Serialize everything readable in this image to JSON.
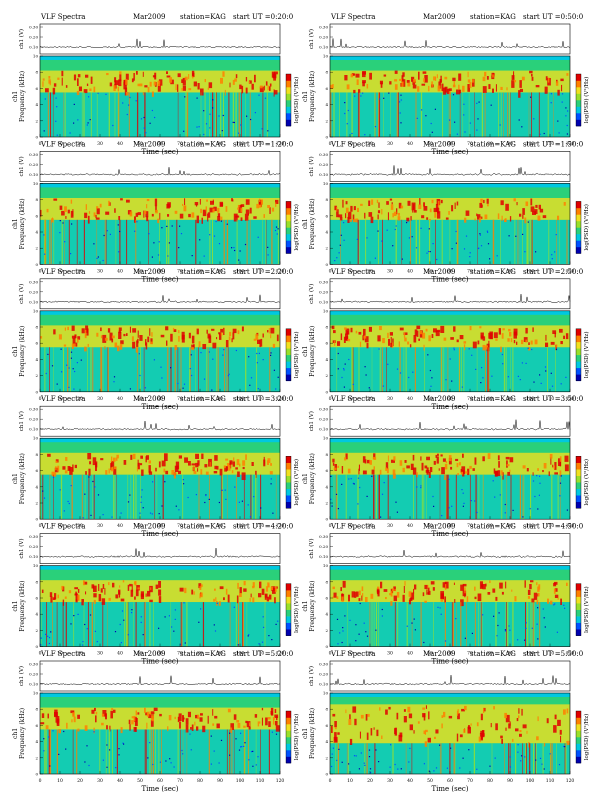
{
  "colors": {
    "spectrogram": [
      "#0000b0",
      "#0050ff",
      "#00c8e0",
      "#2ad07a",
      "#9ae02a",
      "#f0e020",
      "#ff8000",
      "#e00000"
    ],
    "line": "#000000",
    "background": "#ffffff"
  },
  "chart_data": [
    {
      "type": "heatmap",
      "header": {
        "left": "VLF Spectra",
        "date": "Mar2009",
        "station": "station=KAG",
        "start": "start UT =0:20:0"
      },
      "time_axis": {
        "label": "Time (sec)",
        "range": [
          0,
          120
        ],
        "ticks": [
          0,
          10,
          20,
          30,
          40,
          50,
          60,
          70,
          80,
          90,
          100,
          110,
          120
        ]
      },
      "freq_axis": {
        "label": "Frequency (kHz)",
        "channel_label": "ch1",
        "range": [
          0,
          10
        ],
        "ticks": [
          0,
          2,
          4,
          6,
          8,
          10
        ]
      },
      "amplitude_trace": {
        "label": "ch1 (V)",
        "ticks": [
          "0.30",
          "0.20",
          "0.10"
        ]
      },
      "colorbar": {
        "label": "log(PSD) (V²/Hz)"
      },
      "emission_band_khz": [
        5.5,
        8.2
      ]
    },
    {
      "type": "heatmap",
      "header": {
        "left": "VLF Spectra",
        "date": "Mar2009",
        "station": "station=KAG",
        "start": "start UT =0:50:0"
      },
      "time_axis": {
        "label": "Time (sec)",
        "range": [
          0,
          120
        ],
        "ticks": [
          0,
          10,
          20,
          30,
          40,
          50,
          60,
          70,
          80,
          90,
          100,
          110,
          120
        ]
      },
      "freq_axis": {
        "label": "Frequency (kHz)",
        "channel_label": "ch1",
        "range": [
          0,
          10
        ],
        "ticks": [
          0,
          2,
          4,
          6,
          8,
          10
        ]
      },
      "amplitude_trace": {
        "label": "ch1 (V)",
        "ticks": [
          "0.30",
          "0.20",
          "0.10"
        ]
      },
      "colorbar": {
        "label": "log(PSD) (V²/Hz)"
      },
      "emission_band_khz": [
        5.5,
        8.2
      ]
    },
    {
      "type": "heatmap",
      "header": {
        "left": "VLF Spectra",
        "date": "Mar2009",
        "station": "station=KAG",
        "start": "start UT =1:20:0"
      },
      "time_axis": {
        "label": "Time (sec)",
        "range": [
          0,
          120
        ],
        "ticks": [
          0,
          10,
          20,
          30,
          40,
          50,
          60,
          70,
          80,
          90,
          100,
          110,
          120
        ]
      },
      "freq_axis": {
        "label": "Frequency (kHz)",
        "channel_label": "ch1",
        "range": [
          0,
          10
        ],
        "ticks": [
          0,
          2,
          4,
          6,
          8,
          10
        ]
      },
      "amplitude_trace": {
        "label": "ch1 (V)",
        "ticks": [
          "0.30",
          "0.20",
          "0.10"
        ]
      },
      "colorbar": {
        "label": "log(PSD) (V²/Hz)"
      },
      "emission_band_khz": [
        5.5,
        8.2
      ]
    },
    {
      "type": "heatmap",
      "header": {
        "left": "VLF Spectra",
        "date": "Mar2009",
        "station": "station=KAG",
        "start": "start UT =1:50:0"
      },
      "time_axis": {
        "label": "Time (sec)",
        "range": [
          0,
          120
        ],
        "ticks": [
          0,
          10,
          20,
          30,
          40,
          50,
          60,
          70,
          80,
          90,
          100,
          110,
          120
        ]
      },
      "freq_axis": {
        "label": "Frequency (kHz)",
        "channel_label": "ch1",
        "range": [
          0,
          10
        ],
        "ticks": [
          0,
          2,
          4,
          6,
          8,
          10
        ]
      },
      "amplitude_trace": {
        "label": "ch1 (V)",
        "ticks": [
          "0.30",
          "0.20",
          "0.10"
        ]
      },
      "colorbar": {
        "label": "log(PSD) (V²/Hz)"
      },
      "emission_band_khz": [
        5.5,
        8.2
      ]
    },
    {
      "type": "heatmap",
      "header": {
        "left": "VLF Spectra",
        "date": "Mar2009",
        "station": "station=KAG",
        "start": "start UT =2:20:0"
      },
      "time_axis": {
        "label": "Time (sec)",
        "range": [
          0,
          120
        ],
        "ticks": [
          0,
          10,
          20,
          30,
          40,
          50,
          60,
          70,
          80,
          90,
          100,
          110,
          120
        ]
      },
      "freq_axis": {
        "label": "Frequency (kHz)",
        "channel_label": "ch1",
        "range": [
          0,
          10
        ],
        "ticks": [
          0,
          2,
          4,
          6,
          8,
          10
        ]
      },
      "amplitude_trace": {
        "label": "ch1 (V)",
        "ticks": [
          "0.30",
          "0.20",
          "0.10"
        ]
      },
      "colorbar": {
        "label": "log(PSD) (V²/Hz)"
      },
      "emission_band_khz": [
        5.5,
        8.2
      ]
    },
    {
      "type": "heatmap",
      "header": {
        "left": "VLF Spectra",
        "date": "Mar2009",
        "station": "station=KAG",
        "start": "start UT =2:50:0"
      },
      "time_axis": {
        "label": "Time (sec)",
        "range": [
          0,
          120
        ],
        "ticks": [
          0,
          10,
          20,
          30,
          40,
          50,
          60,
          70,
          80,
          90,
          100,
          110,
          120
        ]
      },
      "freq_axis": {
        "label": "Frequency (kHz)",
        "channel_label": "ch1",
        "range": [
          0,
          10
        ],
        "ticks": [
          0,
          2,
          4,
          6,
          8,
          10
        ]
      },
      "amplitude_trace": {
        "label": "ch1 (V)",
        "ticks": [
          "0.30",
          "0.20",
          "0.10"
        ]
      },
      "colorbar": {
        "label": "log(PSD) (V²/Hz)"
      },
      "emission_band_khz": [
        5.5,
        8.2
      ]
    },
    {
      "type": "heatmap",
      "header": {
        "left": "VLF Spectra",
        "date": "Mar2009",
        "station": "station=KAG",
        "start": "start UT =3:20:0"
      },
      "time_axis": {
        "label": "Time (sec)",
        "range": [
          0,
          120
        ],
        "ticks": [
          0,
          10,
          20,
          30,
          40,
          50,
          60,
          70,
          80,
          90,
          100,
          110,
          120
        ]
      },
      "freq_axis": {
        "label": "Frequency (kHz)",
        "channel_label": "ch1",
        "range": [
          0,
          10
        ],
        "ticks": [
          0,
          2,
          4,
          6,
          8,
          10
        ]
      },
      "amplitude_trace": {
        "label": "ch1 (V)",
        "ticks": [
          "0.30",
          "0.20",
          "0.10"
        ]
      },
      "colorbar": {
        "label": "log(PSD) (V²/Hz)"
      },
      "emission_band_khz": [
        5.5,
        8.2
      ]
    },
    {
      "type": "heatmap",
      "header": {
        "left": "VLF Spectra",
        "date": "Mar2009",
        "station": "station=KAG",
        "start": "start UT =3:50:0"
      },
      "time_axis": {
        "label": "Time (sec)",
        "range": [
          0,
          120
        ],
        "ticks": [
          0,
          10,
          20,
          30,
          40,
          50,
          60,
          70,
          80,
          90,
          100,
          110,
          120
        ]
      },
      "freq_axis": {
        "label": "Frequency (kHz)",
        "channel_label": "ch1",
        "range": [
          0,
          10
        ],
        "ticks": [
          0,
          2,
          4,
          6,
          8,
          10
        ]
      },
      "amplitude_trace": {
        "label": "ch1 (V)",
        "ticks": [
          "0.30",
          "0.20",
          "0.10"
        ]
      },
      "colorbar": {
        "label": "log(PSD) (V²/Hz)"
      },
      "emission_band_khz": [
        5.5,
        8.2
      ]
    },
    {
      "type": "heatmap",
      "header": {
        "left": "VLF Spectra",
        "date": "Mar2009",
        "station": "station=KAG",
        "start": "start UT =4:20:0"
      },
      "time_axis": {
        "label": "Time (sec)",
        "range": [
          0,
          120
        ],
        "ticks": [
          0,
          10,
          20,
          30,
          40,
          50,
          60,
          70,
          80,
          90,
          100,
          110,
          120
        ]
      },
      "freq_axis": {
        "label": "Frequency (kHz)",
        "channel_label": "ch1",
        "range": [
          0,
          10
        ],
        "ticks": [
          0,
          2,
          4,
          6,
          8,
          10
        ]
      },
      "amplitude_trace": {
        "label": "ch1 (V)",
        "ticks": [
          "0.30",
          "0.20",
          "0.10"
        ]
      },
      "colorbar": {
        "label": "log(PSD) (V²/Hz)"
      },
      "emission_band_khz": [
        5.5,
        8.2
      ]
    },
    {
      "type": "heatmap",
      "header": {
        "left": "VLF Spectra",
        "date": "Mar2009",
        "station": "station=KAG",
        "start": "start UT =4:50:0"
      },
      "time_axis": {
        "label": "Time (sec)",
        "range": [
          0,
          120
        ],
        "ticks": [
          0,
          10,
          20,
          30,
          40,
          50,
          60,
          70,
          80,
          90,
          100,
          110,
          120
        ]
      },
      "freq_axis": {
        "label": "Frequency (kHz)",
        "channel_label": "ch1",
        "range": [
          0,
          10
        ],
        "ticks": [
          0,
          2,
          4,
          6,
          8,
          10
        ]
      },
      "amplitude_trace": {
        "label": "ch1 (V)",
        "ticks": [
          "0.30",
          "0.20",
          "0.10"
        ]
      },
      "colorbar": {
        "label": "log(PSD) (V²/Hz)"
      },
      "emission_band_khz": [
        5.5,
        8.2
      ]
    },
    {
      "type": "heatmap",
      "header": {
        "left": "VLF Spectra",
        "date": "Mar2009",
        "station": "station=KAG",
        "start": "start UT =5:20:0"
      },
      "time_axis": {
        "label": "Time (sec)",
        "range": [
          0,
          120
        ],
        "ticks": [
          0,
          10,
          20,
          30,
          40,
          50,
          60,
          70,
          80,
          90,
          100,
          110,
          120
        ]
      },
      "freq_axis": {
        "label": "Frequency (kHz)",
        "channel_label": "ch1",
        "range": [
          0,
          10
        ],
        "ticks": [
          0,
          2,
          4,
          6,
          8,
          10
        ]
      },
      "amplitude_trace": {
        "label": "ch1 (V)",
        "ticks": [
          "0.30",
          "0.20",
          "0.10"
        ]
      },
      "colorbar": {
        "label": "log(PSD) (V²/Hz)"
      },
      "emission_band_khz": [
        5.5,
        8.2
      ]
    },
    {
      "type": "heatmap",
      "header": {
        "left": "VLF Spectra",
        "date": "Mar2009",
        "station": "station=KAG",
        "start": "start UT =5:50:0"
      },
      "time_axis": {
        "label": "Time (sec)",
        "range": [
          0,
          120
        ],
        "ticks": [
          0,
          10,
          20,
          30,
          40,
          50,
          60,
          70,
          80,
          90,
          100,
          110,
          120
        ]
      },
      "freq_axis": {
        "label": "Frequency (kHz)",
        "channel_label": "ch1",
        "range": [
          0,
          10
        ],
        "ticks": [
          0,
          2,
          4,
          6,
          8,
          10
        ]
      },
      "amplitude_trace": {
        "label": "ch1 (V)",
        "ticks": [
          "0.30",
          "0.20",
          "0.10"
        ]
      },
      "colorbar": {
        "label": "log(PSD) (V²/Hz)"
      },
      "emission_band_khz": [
        3.8,
        8.6
      ]
    }
  ]
}
